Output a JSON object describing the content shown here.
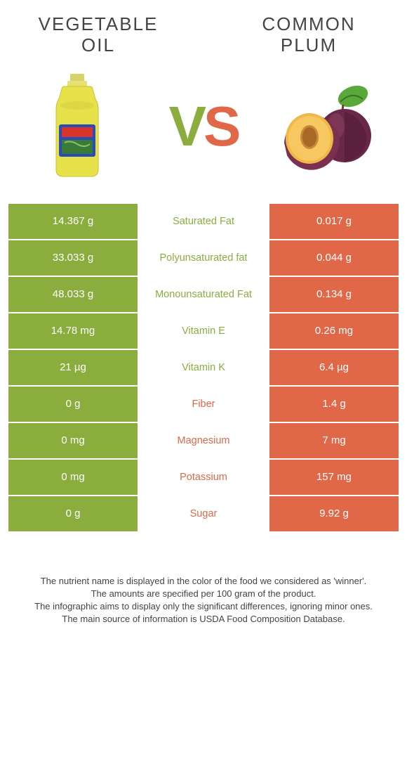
{
  "colors": {
    "left_bg": "#8aad3e",
    "right_bg": "#e06848",
    "left_text": "#8aad3e",
    "right_text": "#e06848",
    "row_sep": "#ffffff",
    "page_bg": "#ffffff",
    "body_text": "#444444"
  },
  "header": {
    "left_title": "Vegetable\noil",
    "right_title": "Common\nplum",
    "vs_v": "V",
    "vs_s": "S"
  },
  "rows": [
    {
      "left": "14.367 g",
      "label": "Saturated Fat",
      "right": "0.017 g",
      "winner": "left"
    },
    {
      "left": "33.033 g",
      "label": "Polyunsaturated fat",
      "right": "0.044 g",
      "winner": "left"
    },
    {
      "left": "48.033 g",
      "label": "Monounsaturated Fat",
      "right": "0.134 g",
      "winner": "left"
    },
    {
      "left": "14.78 mg",
      "label": "Vitamin E",
      "right": "0.26 mg",
      "winner": "left"
    },
    {
      "left": "21 µg",
      "label": "Vitamin K",
      "right": "6.4 µg",
      "winner": "left"
    },
    {
      "left": "0 g",
      "label": "Fiber",
      "right": "1.4 g",
      "winner": "right"
    },
    {
      "left": "0 mg",
      "label": "Magnesium",
      "right": "7 mg",
      "winner": "right"
    },
    {
      "left": "0 mg",
      "label": "Potassium",
      "right": "157 mg",
      "winner": "right"
    },
    {
      "left": "0 g",
      "label": "Sugar",
      "right": "9.92 g",
      "winner": "right"
    }
  ],
  "footnotes": [
    "The nutrient name is displayed in the color of the food we considered as 'winner'.",
    "The amounts are specified per 100 gram of the product.",
    "The infographic aims to display only the significant differences, ignoring minor ones.",
    "The main source of information is USDA Food Composition Database."
  ]
}
